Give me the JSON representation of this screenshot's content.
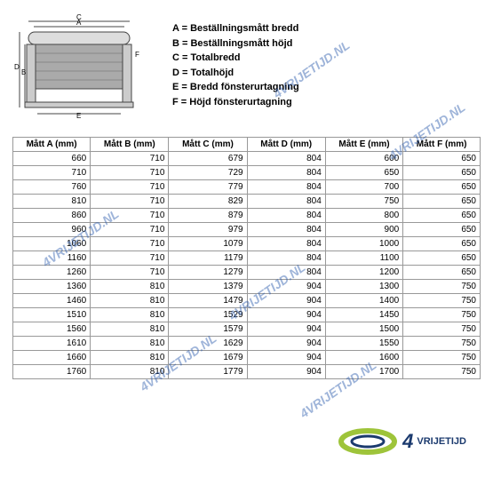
{
  "legend": {
    "A": "A = Beställningsmått bredd",
    "B": "B = Beställningsmått höjd",
    "C": "C = Totalbredd",
    "D": "D = Totalhöjd",
    "E": "E = Bredd fönsterurtagning",
    "F": "F = Höjd fönsterurtagning"
  },
  "table": {
    "columns": [
      "Mått A (mm)",
      "Mått B (mm)",
      "Mått C (mm)",
      "Mått D (mm)",
      "Mått E (mm)",
      "Mått F (mm)"
    ],
    "rows": [
      [
        660,
        710,
        679,
        804,
        600,
        650
      ],
      [
        710,
        710,
        729,
        804,
        650,
        650
      ],
      [
        760,
        710,
        779,
        804,
        700,
        650
      ],
      [
        810,
        710,
        829,
        804,
        750,
        650
      ],
      [
        860,
        710,
        879,
        804,
        800,
        650
      ],
      [
        960,
        710,
        979,
        804,
        900,
        650
      ],
      [
        1060,
        710,
        1079,
        804,
        1000,
        650
      ],
      [
        1160,
        710,
        1179,
        804,
        1100,
        650
      ],
      [
        1260,
        710,
        1279,
        804,
        1200,
        650
      ],
      [
        1360,
        810,
        1379,
        904,
        1300,
        750
      ],
      [
        1460,
        810,
        1479,
        904,
        1400,
        750
      ],
      [
        1510,
        810,
        1529,
        904,
        1450,
        750
      ],
      [
        1560,
        810,
        1579,
        904,
        1500,
        750
      ],
      [
        1610,
        810,
        1629,
        904,
        1550,
        750
      ],
      [
        1660,
        810,
        1679,
        904,
        1600,
        750
      ],
      [
        1760,
        810,
        1779,
        904,
        1700,
        750
      ]
    ]
  },
  "watermark_text": "4VRIJETIJD.NL",
  "logo": {
    "brand_text": "VRIJETIJD",
    "brand_number": "4"
  },
  "colors": {
    "border": "#999999",
    "text": "#000000",
    "watermark": "#2b5bad",
    "logo_blue": "#1b3a6e",
    "logo_green": "#9ec43a"
  }
}
